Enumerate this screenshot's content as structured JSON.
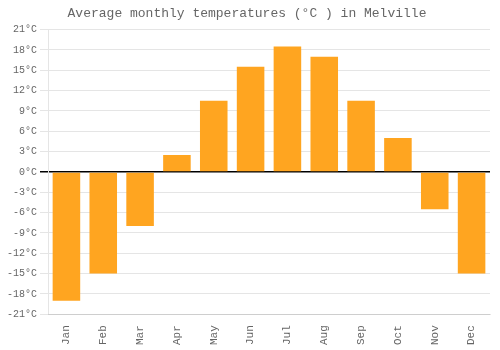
{
  "chart_data": {
    "type": "bar",
    "title": "Average monthly temperatures (°C ) in Melville",
    "categories": [
      "Jan",
      "Feb",
      "Mar",
      "Apr",
      "May",
      "Jun",
      "Jul",
      "Aug",
      "Sep",
      "Oct",
      "Nov",
      "Dec"
    ],
    "values": [
      -19,
      -15,
      -8,
      2.5,
      10.5,
      15.5,
      18.5,
      17,
      10.5,
      5,
      -5.5,
      -15
    ],
    "color": "#FFA520",
    "ylim": [
      -21,
      21
    ],
    "yticks": [
      {
        "value": -21,
        "label": "-21°C"
      },
      {
        "value": -18,
        "label": "-18°C"
      },
      {
        "value": -15,
        "label": "-15°C"
      },
      {
        "value": -12,
        "label": "-12°C"
      },
      {
        "value": -9,
        "label": "-9°C"
      },
      {
        "value": -6,
        "label": "-6°C"
      },
      {
        "value": -3,
        "label": "-3°C"
      },
      {
        "value": 0,
        "label": "0°C"
      },
      {
        "value": 3,
        "label": "3°C"
      },
      {
        "value": 6,
        "label": "6°C"
      },
      {
        "value": 9,
        "label": "9°C"
      },
      {
        "value": 12,
        "label": "12°C"
      },
      {
        "value": 15,
        "label": "15°C"
      },
      {
        "value": 18,
        "label": "18°C"
      },
      {
        "value": 21,
        "label": "21°C"
      }
    ],
    "grid": true
  }
}
